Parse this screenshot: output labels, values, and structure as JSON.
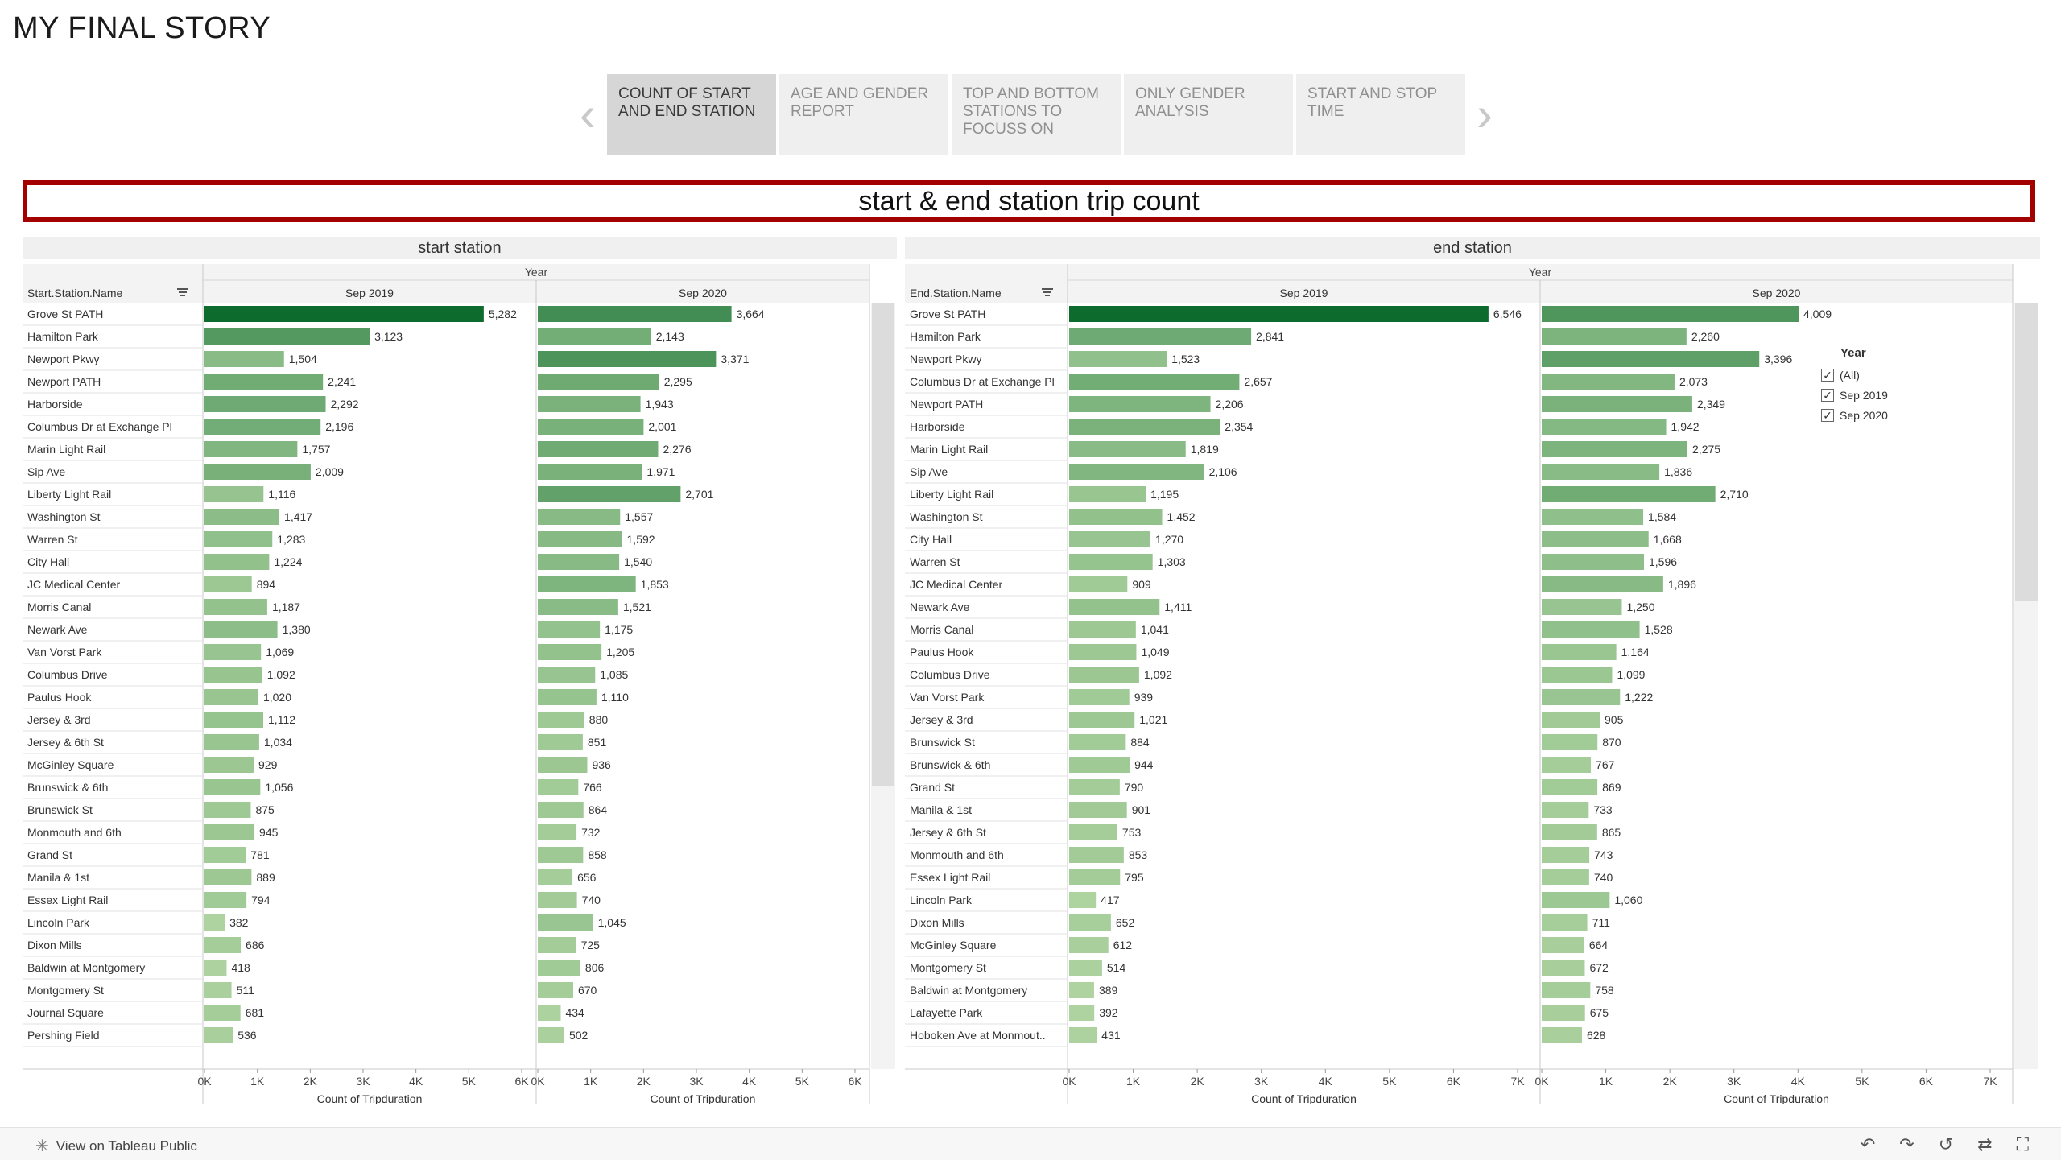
{
  "story_title": "MY FINAL STORY",
  "nav": {
    "prev_icon": "chevron-left-icon",
    "next_icon": "chevron-right-icon",
    "points": [
      {
        "label": "COUNT OF START AND END STATION",
        "active": true
      },
      {
        "label": "AGE AND GENDER REPORT",
        "active": false
      },
      {
        "label": "TOP AND BOTTOM STATIONS TO FOCUSS ON",
        "active": false
      },
      {
        "label": "ONLY GENDER ANALYSIS",
        "active": false
      },
      {
        "label": "START AND STOP TIME",
        "active": false
      }
    ]
  },
  "dashboard_title": "start & end station trip count",
  "filter": {
    "title": "Year",
    "items": [
      {
        "label": "(All)",
        "checked": true
      },
      {
        "label": "Sep 2019",
        "checked": true
      },
      {
        "label": "Sep 2020",
        "checked": true
      }
    ]
  },
  "chart_data": [
    {
      "type": "bar",
      "orientation": "horizontal",
      "panel_title": "start station",
      "column_header": "Year",
      "row_header": "Start.Station.Name",
      "xlabel": "Count of Tripduration",
      "xticks": [
        "0K",
        "1K",
        "2K",
        "3K",
        "4K",
        "5K",
        "6K"
      ],
      "xlim": [
        0,
        6000
      ],
      "categories": [
        "Grove St PATH",
        "Hamilton Park",
        "Newport Pkwy",
        "Newport PATH",
        "Harborside",
        "Columbus Dr at Exchange Pl",
        "Marin Light Rail",
        "Sip Ave",
        "Liberty Light Rail",
        "Washington St",
        "Warren St",
        "City Hall",
        "JC Medical Center",
        "Morris Canal",
        "Newark Ave",
        "Van Vorst Park",
        "Columbus Drive",
        "Paulus Hook",
        "Jersey & 3rd",
        "Jersey & 6th St",
        "McGinley Square",
        "Brunswick & 6th",
        "Brunswick St",
        "Monmouth and 6th",
        "Grand St",
        "Manila & 1st",
        "Essex Light Rail",
        "Lincoln Park",
        "Dixon Mills",
        "Baldwin at Montgomery",
        "Montgomery St",
        "Journal Square",
        "Pershing Field"
      ],
      "series": [
        {
          "name": "Sep 2019",
          "values": [
            5282,
            3123,
            1504,
            2241,
            2292,
            2196,
            1757,
            2009,
            1116,
            1417,
            1283,
            1224,
            894,
            1187,
            1380,
            1069,
            1092,
            1020,
            1112,
            1034,
            929,
            1056,
            875,
            945,
            781,
            889,
            794,
            382,
            686,
            418,
            511,
            681,
            536
          ]
        },
        {
          "name": "Sep 2020",
          "values": [
            3664,
            2143,
            3371,
            2295,
            1943,
            2001,
            2276,
            1971,
            2701,
            1557,
            1592,
            1540,
            1853,
            1521,
            1175,
            1205,
            1085,
            1110,
            880,
            851,
            936,
            766,
            864,
            732,
            858,
            656,
            740,
            1045,
            725,
            806,
            670,
            434,
            502
          ]
        }
      ],
      "color_range": [
        "#aed3a0",
        "#0d6b2e"
      ],
      "color_domain": [
        382,
        5282
      ]
    },
    {
      "type": "bar",
      "orientation": "horizontal",
      "panel_title": "end station",
      "column_header": "Year",
      "row_header": "End.Station.Name",
      "xlabel": "Count of Tripduration",
      "xticks": [
        "0K",
        "1K",
        "2K",
        "3K",
        "4K",
        "5K",
        "6K",
        "7K"
      ],
      "xlim": [
        0,
        7000
      ],
      "categories": [
        "Grove St PATH",
        "Hamilton Park",
        "Newport Pkwy",
        "Columbus Dr at Exchange Pl",
        "Newport PATH",
        "Harborside",
        "Marin Light Rail",
        "Sip Ave",
        "Liberty Light Rail",
        "Washington St",
        "City Hall",
        "Warren St",
        "JC Medical Center",
        "Newark Ave",
        "Morris Canal",
        "Paulus Hook",
        "Columbus Drive",
        "Van Vorst Park",
        "Jersey & 3rd",
        "Brunswick St",
        "Brunswick & 6th",
        "Grand St",
        "Manila & 1st",
        "Jersey & 6th St",
        "Monmouth and 6th",
        "Essex Light Rail",
        "Lincoln Park",
        "Dixon Mills",
        "McGinley Square",
        "Montgomery St",
        "Baldwin at Montgomery",
        "Lafayette Park",
        "Hoboken Ave at Monmout.."
      ],
      "series": [
        {
          "name": "Sep 2019",
          "values": [
            6546,
            2841,
            1523,
            2657,
            2206,
            2354,
            1819,
            2106,
            1195,
            1452,
            1270,
            1303,
            909,
            1411,
            1041,
            1049,
            1092,
            939,
            1021,
            884,
            944,
            790,
            901,
            753,
            853,
            795,
            417,
            652,
            612,
            514,
            389,
            392,
            431
          ]
        },
        {
          "name": "Sep 2020",
          "values": [
            4009,
            2260,
            3396,
            2073,
            2349,
            1942,
            2275,
            1836,
            2710,
            1584,
            1668,
            1596,
            1896,
            1250,
            1528,
            1164,
            1099,
            1222,
            905,
            870,
            767,
            869,
            733,
            865,
            743,
            740,
            1060,
            711,
            664,
            672,
            758,
            675,
            628
          ]
        }
      ],
      "color_range": [
        "#aed3a0",
        "#0d6b2e"
      ],
      "color_domain": [
        389,
        6546
      ]
    }
  ],
  "footer": {
    "link_label": "View on Tableau Public",
    "icons": [
      "undo-icon",
      "redo-icon",
      "revert-icon",
      "share-icon",
      "fullscreen-icon"
    ]
  }
}
